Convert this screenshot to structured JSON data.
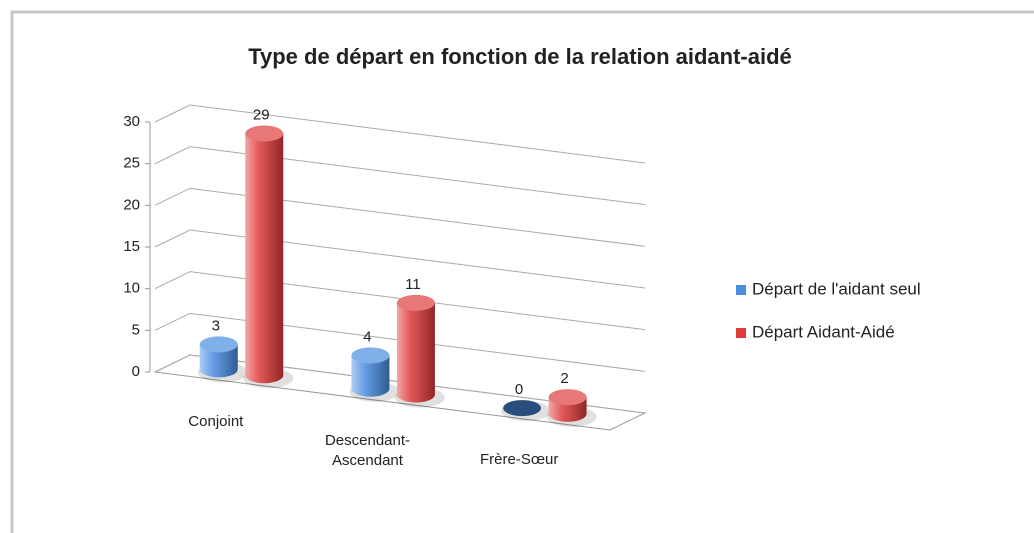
{
  "chart_data": {
    "type": "bar3d",
    "title": "Type de départ en fonction de la relation aidant-aidé",
    "categories": [
      "Conjoint",
      "Descendant-Ascendant",
      "Frère-Sœur"
    ],
    "series": [
      {
        "name": "Départ de l'aidant seul",
        "color": "#4a8ee0",
        "values": [
          3,
          4,
          0
        ]
      },
      {
        "name": "Départ Aidant-Aidé",
        "color": "#de3c3c",
        "values": [
          29,
          11,
          2
        ]
      }
    ],
    "ylim": [
      0,
      30
    ],
    "yticks": [
      0,
      5,
      10,
      15,
      20,
      25,
      30
    ],
    "grid": true,
    "legend": "right"
  }
}
